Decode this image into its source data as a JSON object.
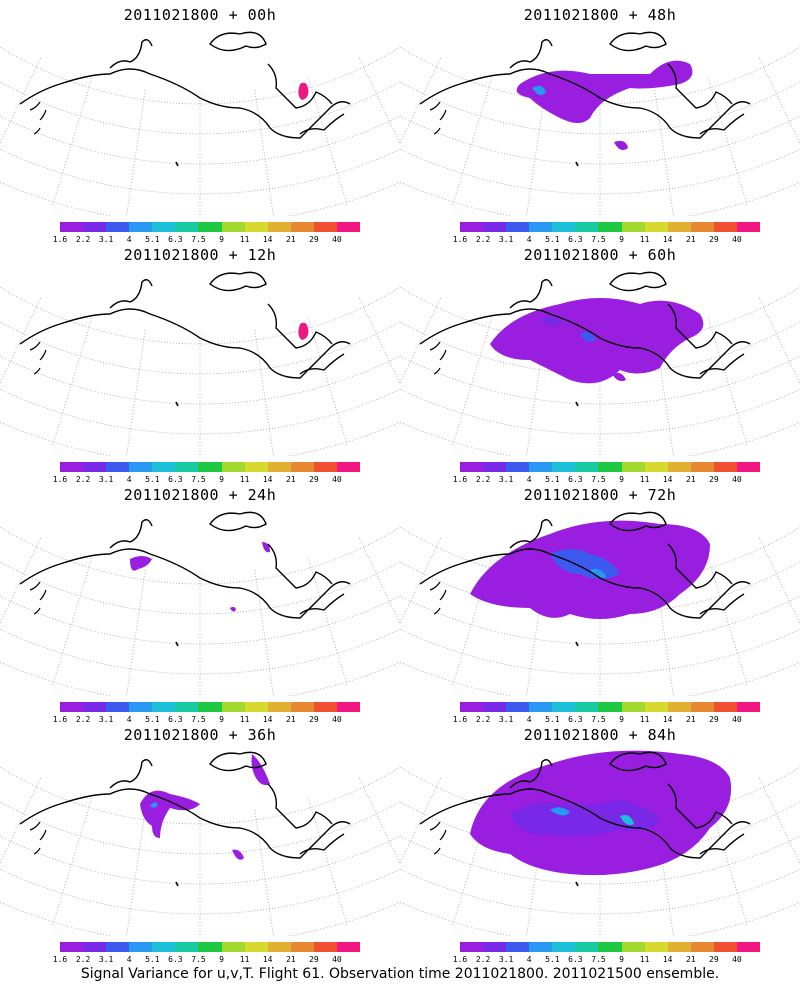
{
  "panels": [
    {
      "title": "2011021800 + 00h",
      "level": 0
    },
    {
      "title": "2011021800 + 48h",
      "level": 3
    },
    {
      "title": "2011021800 + 12h",
      "level": 0
    },
    {
      "title": "2011021800 + 60h",
      "level": 4
    },
    {
      "title": "2011021800 + 24h",
      "level": 1
    },
    {
      "title": "2011021800 + 72h",
      "level": 5
    },
    {
      "title": "2011021800 + 36h",
      "level": 2
    },
    {
      "title": "2011021800 + 84h",
      "level": 6
    }
  ],
  "colorbar": {
    "labels": [
      "1.6",
      "2.2",
      "3.1",
      "4",
      "5.1",
      "6.3",
      "7.5",
      "9",
      "11",
      "14",
      "21",
      "29",
      "40"
    ],
    "colors": [
      "#9a1ee0",
      "#7a28e8",
      "#3c5af0",
      "#2898f0",
      "#1cc0d8",
      "#18c8a0",
      "#1ec840",
      "#a0d830",
      "#d8d830",
      "#e0b030",
      "#e88830",
      "#f05030",
      "#f01880"
    ]
  },
  "caption": "Signal Variance for u,v,T. Flight 61. Observation time 2011021800. 2011021500 ensemble."
}
